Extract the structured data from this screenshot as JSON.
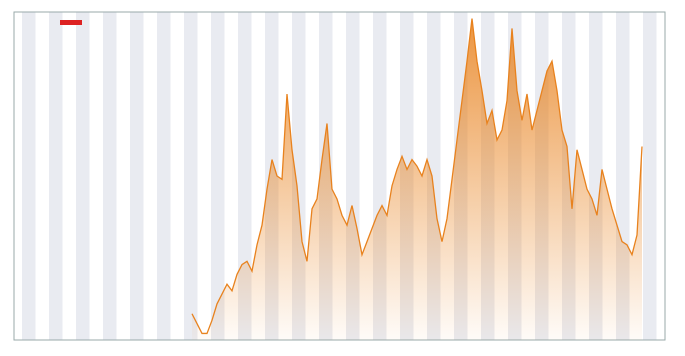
{
  "chart_data": {
    "type": "area",
    "color": "#e8821e",
    "values": [
      8,
      5,
      2,
      2,
      6,
      11,
      14,
      17,
      15,
      20,
      23,
      24,
      21,
      29,
      35,
      46,
      55,
      50,
      49,
      75,
      58,
      47,
      30,
      24,
      40,
      43,
      55,
      66,
      46,
      43,
      38,
      35,
      41,
      34,
      26,
      30,
      34,
      38,
      41,
      38,
      47,
      52,
      56,
      52,
      55,
      53,
      50,
      55,
      50,
      37,
      30,
      37,
      49,
      61,
      73,
      85,
      98,
      85,
      76,
      66,
      70,
      61,
      64,
      73,
      95,
      76,
      67,
      75,
      64,
      70,
      76,
      82,
      85,
      76,
      64,
      59,
      40,
      58,
      52,
      46,
      43,
      38,
      52,
      46,
      40,
      35,
      30,
      29,
      26,
      32,
      59
    ],
    "ylim": [
      0,
      100
    ]
  }
}
